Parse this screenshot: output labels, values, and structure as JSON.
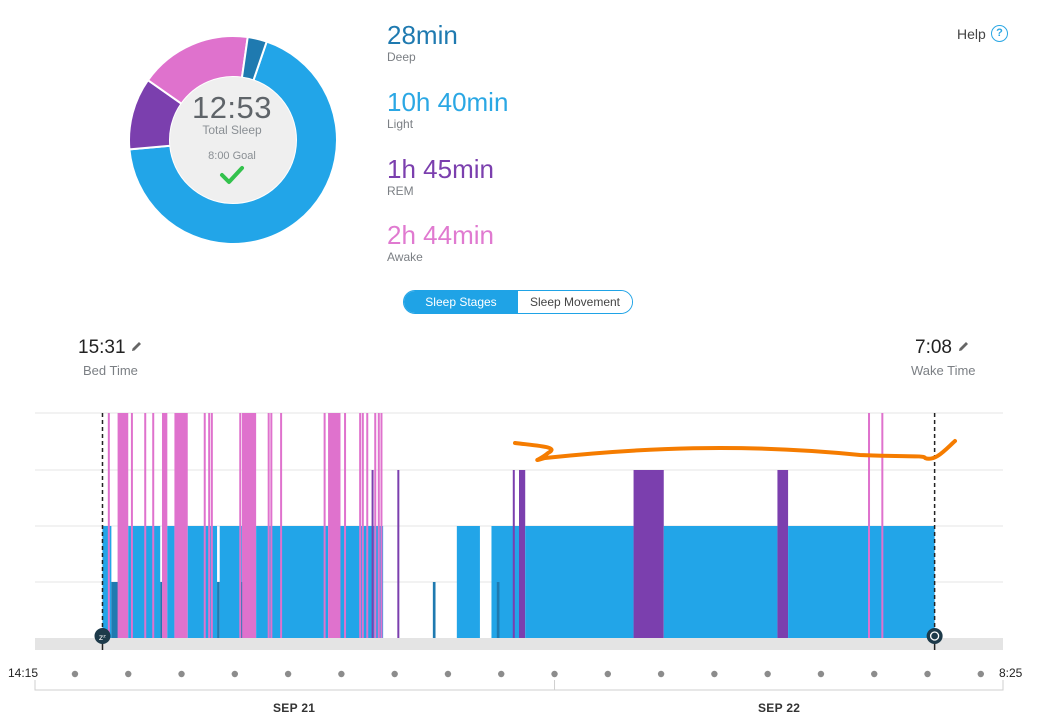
{
  "summary": {
    "total_time": "12:53",
    "total_label": "Total Sleep",
    "goal_label": "8:00 Goal",
    "goal_met_icon": "checkmark-icon"
  },
  "stats": [
    {
      "value": "28min",
      "label": "Deep",
      "color": "#1f7ab0"
    },
    {
      "value": "10h 40min",
      "label": "Light",
      "color": "#2aa7e4"
    },
    {
      "value": "1h 45min",
      "label": "REM",
      "color": "#7b3fae"
    },
    {
      "value": "2h 44min",
      "label": "Awake",
      "color": "#e07ad0"
    }
  ],
  "help": {
    "label": "Help",
    "icon": "question-circle-icon"
  },
  "tabs": {
    "sleep_stages": "Sleep Stages",
    "sleep_movement": "Sleep Movement",
    "active": "sleep_stages"
  },
  "bed_time": {
    "value": "15:31",
    "label": "Bed Time",
    "icon": "pencil-icon"
  },
  "wake_time": {
    "value": "7:08",
    "label": "Wake Time",
    "icon": "pencil-icon"
  },
  "colors": {
    "deep": "#1f7ab0",
    "light": "#22a5e8",
    "rem": "#7b3fae",
    "awake": "#df72cd",
    "annotation": "#f57c00",
    "baseline": "#e4e4e4"
  },
  "donut_minutes": {
    "deep": 28,
    "light": 640,
    "rem": 105,
    "awake": 164
  },
  "chart_data": {
    "type": "area",
    "x_range": [
      "14:15",
      "8:25"
    ],
    "date_labels": [
      "SEP 21",
      "SEP 22"
    ],
    "stage_levels": {
      "deep": 1,
      "light": 2,
      "rem": 3,
      "awake": 4
    },
    "segments": [
      {
        "stage": "light",
        "start": "15:31",
        "end": "15:41"
      },
      {
        "stage": "deep",
        "start": "15:41",
        "end": "15:50"
      },
      {
        "stage": "awake",
        "start": "15:50",
        "end": "16:00"
      },
      {
        "stage": "light",
        "start": "16:00",
        "end": "16:36"
      },
      {
        "stage": "deep",
        "start": "16:36",
        "end": "16:38"
      },
      {
        "stage": "awake",
        "start": "16:38",
        "end": "16:44"
      },
      {
        "stage": "light",
        "start": "16:44",
        "end": "16:52"
      },
      {
        "stage": "awake",
        "start": "16:52",
        "end": "17:07"
      },
      {
        "stage": "light",
        "start": "17:07",
        "end": "17:40"
      },
      {
        "stage": "deep",
        "start": "17:40",
        "end": "17:43"
      },
      {
        "stage": "light",
        "start": "17:43",
        "end": "18:08"
      },
      {
        "stage": "awake",
        "start": "18:08",
        "end": "18:24"
      },
      {
        "stage": "light",
        "start": "18:24",
        "end": "19:45"
      },
      {
        "stage": "awake",
        "start": "19:45",
        "end": "19:59"
      },
      {
        "stage": "light",
        "start": "19:59",
        "end": "20:47"
      },
      {
        "stage": "light",
        "start": "22:10",
        "end": "22:36"
      },
      {
        "stage": "light",
        "start": "22:49",
        "end": "23:20"
      },
      {
        "stage": "rem",
        "start": "23:20",
        "end": "23:27"
      },
      {
        "stage": "light",
        "start": "23:27",
        "end": "01:29"
      },
      {
        "stage": "rem",
        "start": "01:29",
        "end": "02:03"
      },
      {
        "stage": "light",
        "start": "02:03",
        "end": "04:11"
      },
      {
        "stage": "rem",
        "start": "04:11",
        "end": "04:23"
      },
      {
        "stage": "light",
        "start": "04:23",
        "end": "07:08"
      }
    ],
    "awake_spikes": [
      "15:37",
      "15:48",
      "16:03",
      "16:18",
      "16:27",
      "16:55",
      "17:03",
      "17:25",
      "17:30",
      "17:33",
      "18:05",
      "18:14",
      "18:37",
      "18:40",
      "18:51",
      "19:40",
      "20:03",
      "20:20",
      "20:23",
      "20:28",
      "20:37",
      "20:41",
      "20:44",
      "05:53",
      "06:08"
    ],
    "deep_bits": [
      {
        "start": "18:06",
        "end": "18:08"
      },
      {
        "start": "21:43",
        "end": "21:46"
      },
      {
        "start": "22:55",
        "end": "22:58"
      }
    ],
    "rem_bits": [
      {
        "start": "20:34",
        "end": "20:36"
      },
      {
        "start": "21:03",
        "end": "21:05"
      },
      {
        "start": "23:13",
        "end": "23:15"
      }
    ]
  }
}
